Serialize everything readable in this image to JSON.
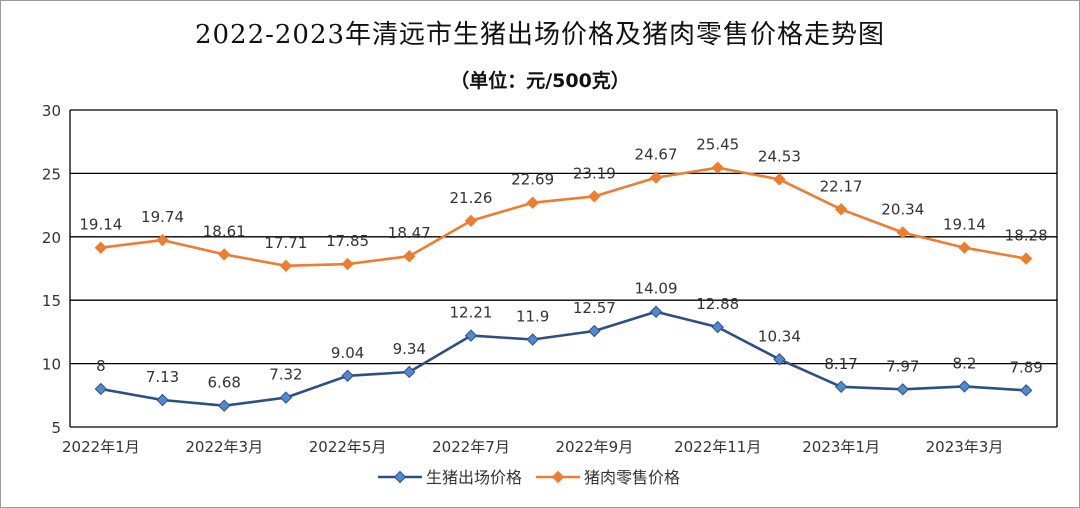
{
  "title": "2022-2023年清远市生猪出场价格及猪肉零售价格走势图",
  "subtitle": "（单位：元/500克）",
  "chart_data": {
    "type": "line",
    "x": [
      "2022年1月",
      "2022年2月",
      "2022年3月",
      "2022年4月",
      "2022年5月",
      "2022年6月",
      "2022年7月",
      "2022年8月",
      "2022年9月",
      "2022年10月",
      "2022年11月",
      "2022年12月",
      "2023年1月",
      "2023年2月",
      "2023年3月",
      "2023年4月"
    ],
    "xtick_labels": [
      "2022年1月",
      "",
      "2022年3月",
      "",
      "2022年5月",
      "",
      "2022年7月",
      "",
      "2022年9月",
      "",
      "2022年11月",
      "",
      "2023年1月",
      "",
      "2023年3月",
      ""
    ],
    "ylim": [
      5,
      30
    ],
    "yticks": [
      "5",
      "10",
      "15",
      "20",
      "25",
      "30"
    ],
    "grid": true,
    "legend_position": "bottom",
    "series": [
      {
        "name": "生猪出场价格",
        "color": "#2e4f84",
        "marker_color": "#4f8ad1",
        "values": [
          8,
          7.13,
          6.68,
          7.32,
          9.04,
          9.34,
          12.21,
          11.9,
          12.57,
          14.09,
          12.88,
          10.34,
          8.17,
          7.97,
          8.2,
          7.89
        ],
        "labels": [
          "8",
          "7.13",
          "6.68",
          "7.32",
          "9.04",
          "9.34",
          "12.21",
          "11.9",
          "12.57",
          "14.09",
          "12.88",
          "10.34",
          "8.17",
          "7.97",
          "8.2",
          "7.89"
        ]
      },
      {
        "name": "猪肉零售价格",
        "color": "#ed7d31",
        "marker_color": "#ed7d31",
        "values": [
          19.14,
          19.74,
          18.61,
          17.71,
          17.85,
          18.47,
          21.26,
          22.69,
          23.19,
          24.67,
          25.45,
          24.53,
          22.17,
          20.34,
          19.14,
          18.28
        ],
        "labels": [
          "19.14",
          "19.74",
          "18.61",
          "17.71",
          "17.85",
          "18.47",
          "21.26",
          "22.69",
          "23.19",
          "24.67",
          "25.45",
          "24.53",
          "22.17",
          "20.34",
          "19.14",
          "18.28"
        ]
      }
    ]
  }
}
